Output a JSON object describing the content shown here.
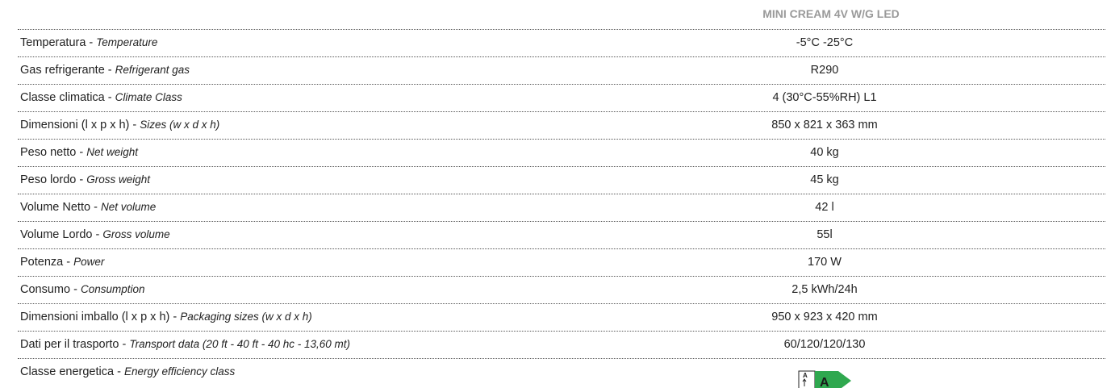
{
  "table": {
    "header": "MINI CREAM 4V W/G LED",
    "separator": " - ",
    "rows": [
      {
        "it": "Temperatura",
        "en": "Temperature",
        "value": "-5°C -25°C"
      },
      {
        "it": "Gas refrigerante",
        "en": "Refrigerant gas",
        "value": "R290"
      },
      {
        "it": "Classe climatica",
        "en": "Climate Class",
        "value": "4 (30°C-55%RH) L1"
      },
      {
        "it": "Dimensioni (l x p x h)",
        "en": "Sizes (w x d x h)",
        "value": "850 x 821 x 363 mm"
      },
      {
        "it": "Peso netto",
        "en": "Net weight",
        "value": "40 kg"
      },
      {
        "it": "Peso lordo",
        "en": "Gross weight",
        "value": "45 kg"
      },
      {
        "it": "Volume Netto",
        "en": "Net volume",
        "value": "42 l"
      },
      {
        "it": "Volume Lordo",
        "en": "Gross volume",
        "value": "55l"
      },
      {
        "it": "Potenza",
        "en": "Power",
        "value": "170 W"
      },
      {
        "it": "Consumo",
        "en": "Consumption",
        "value": "2,5 kWh/24h"
      },
      {
        "it": "Dimensioni imballo (l x p x h)",
        "en": "Packaging sizes (w x d x h)",
        "value": "950 x 923 x 420 mm"
      },
      {
        "it": "Dati per il trasporto",
        "en": "Transport data (20 ft - 40 ft - 40 hc - 13,60 mt)",
        "value": "60/120/120/130"
      },
      {
        "it": "Classe energetica",
        "en": "Energy efficiency class",
        "energy_class": "A"
      }
    ]
  }
}
